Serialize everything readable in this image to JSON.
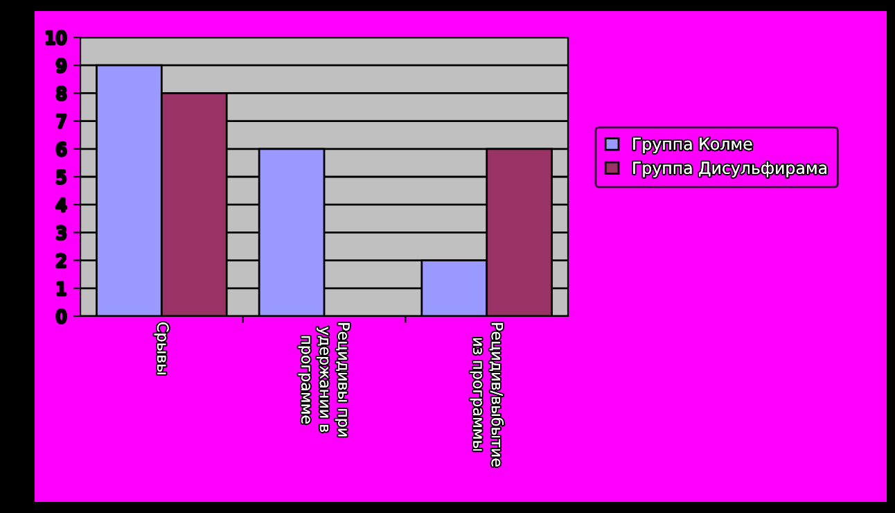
{
  "chart_data": {
    "type": "bar",
    "categories": [
      "Срывы",
      "Рецидивы при\nудержании в\nпрограмме",
      "Рецидив/выбытие\nиз программы"
    ],
    "series": [
      {
        "name": "Группа Колме",
        "color": "#9999ff",
        "values": [
          9,
          6,
          2
        ]
      },
      {
        "name": "Группа Дисульфирама",
        "color": "#993366",
        "values": [
          8,
          null,
          6
        ]
      }
    ],
    "ylim": [
      0,
      10
    ],
    "yticks": [
      0,
      1,
      2,
      3,
      4,
      5,
      6,
      7,
      8,
      9,
      10
    ],
    "grid": "y",
    "legend": "right"
  }
}
